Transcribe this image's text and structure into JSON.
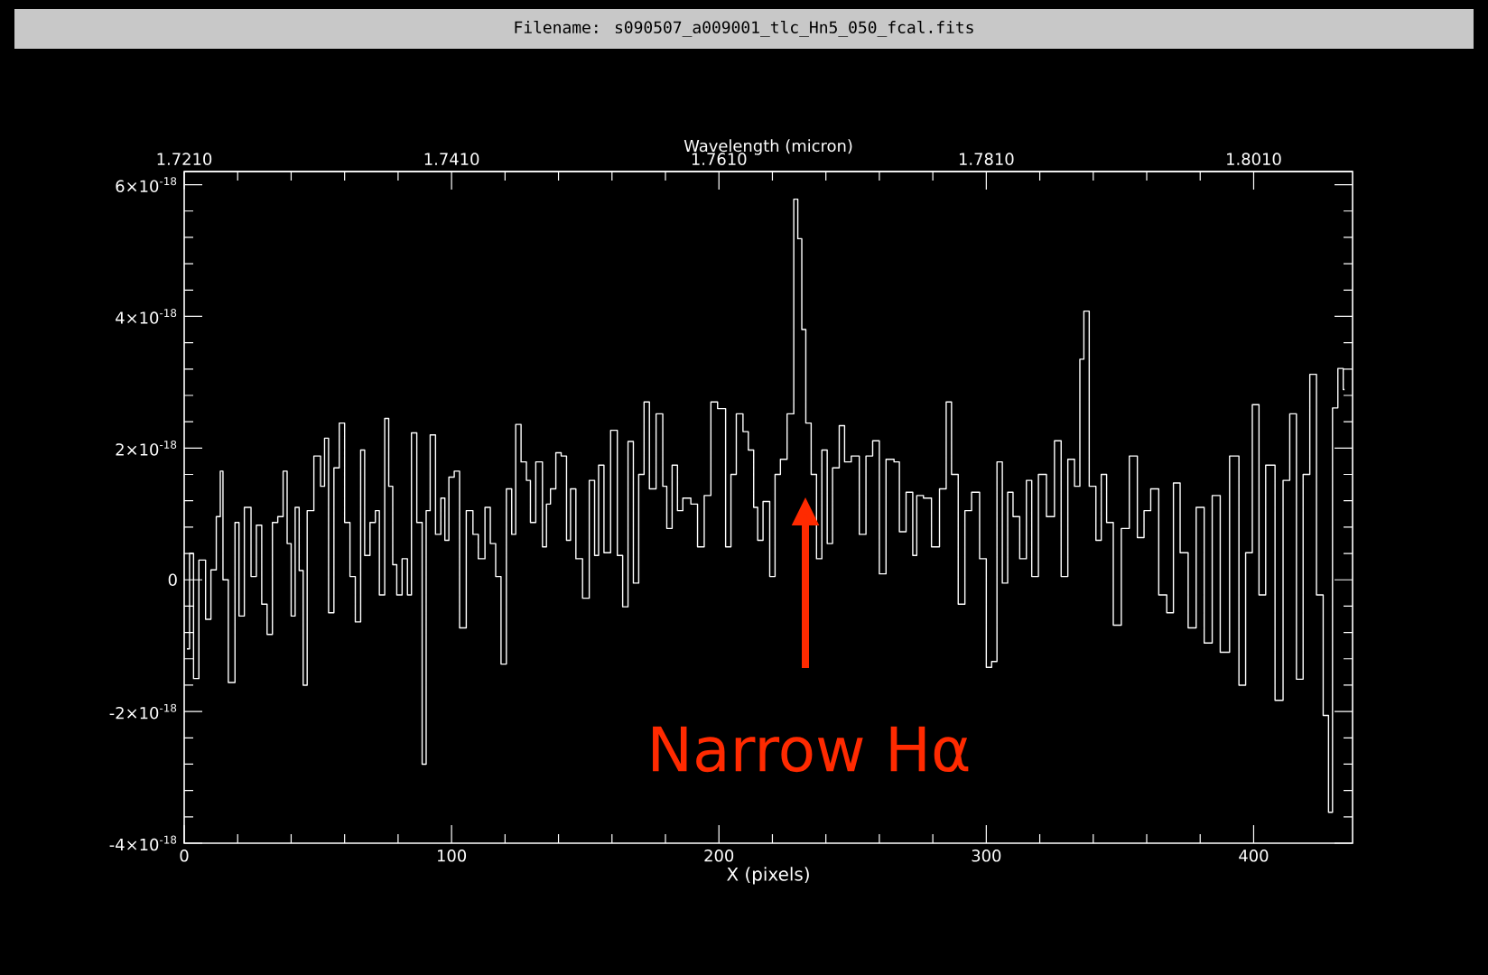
{
  "chart_data": {
    "type": "step",
    "title": "Filename: s090507_a009001_tlc_Hn5_050_fcal.fits",
    "xlabel": "X (pixels)",
    "x2label": "Wavelength (micron)",
    "xlim": [
      0,
      437
    ],
    "xticks": [
      0,
      100,
      200,
      300,
      400
    ],
    "x2lim": [
      1.721,
      1.8084
    ],
    "x2ticks": [
      {
        "value": 1.721,
        "label": "1.7210"
      },
      {
        "value": 1.741,
        "label": "1.7410"
      },
      {
        "value": 1.761,
        "label": "1.7610"
      },
      {
        "value": 1.781,
        "label": "1.7810"
      },
      {
        "value": 1.801,
        "label": "1.8010"
      }
    ],
    "ylim": [
      -4e-18,
      6.2e-18
    ],
    "yticks": [
      {
        "value": -4e-18,
        "label": "-4×10$^{-18}$"
      },
      {
        "value": -2e-18,
        "label": "-2×10$^{-18}$"
      },
      {
        "value": 0,
        "label": "0"
      },
      {
        "value": 2e-18,
        "label": "2×10$^{-18}$"
      },
      {
        "value": 4e-18,
        "label": "4×10$^{-18}$"
      },
      {
        "value": 6e-18,
        "label": "6×10$^{-18}$"
      }
    ],
    "annotations": [
      "Narrow Hα"
    ],
    "x": [
      1,
      3,
      4,
      7,
      9,
      11,
      13,
      14,
      15,
      18,
      20,
      21,
      24,
      26,
      28,
      30,
      32,
      34,
      36,
      38,
      39,
      41,
      42,
      44,
      45,
      47,
      50,
      52,
      53,
      55,
      57,
      59,
      61,
      63,
      65,
      67,
      68,
      71,
      72,
      74,
      76,
      77,
      79,
      80,
      83,
      84,
      86,
      88,
      90,
      91,
      93,
      95,
      97,
      98,
      100,
      102,
      104,
      107,
      109,
      111,
      114,
      115,
      118,
      119,
      122,
      123,
      125,
      127,
      129,
      130,
      133,
      135,
      136,
      138,
      140,
      142,
      144,
      145,
      148,
      150,
      153,
      154,
      156,
      158,
      161,
      163,
      165,
      167,
      169,
      171,
      173,
      175,
      178,
      180,
      181,
      184,
      185,
      188,
      191,
      193,
      196,
      198,
      201,
      204,
      205,
      208,
      210,
      212,
      214,
      215,
      218,
      220,
      222,
      224,
      227,
      229,
      230,
      232,
      233,
      236,
      237,
      240,
      241,
      244,
      246,
      248,
      251,
      254,
      256,
      259,
      261,
      264,
      267,
      268,
      272,
      273,
      275,
      278,
      281,
      284,
      286,
      288,
      291,
      293,
      296,
      299,
      301,
      303,
      305,
      307,
      309,
      311,
      314,
      316,
      318,
      321,
      324,
      327,
      329,
      332,
      334,
      336,
      337,
      340,
      342,
      344,
      346,
      349,
      352,
      355,
      358,
      360,
      363,
      366,
      369,
      371,
      374,
      377,
      380,
      383,
      386,
      389,
      393,
      396,
      398,
      401,
      403,
      406,
      410,
      412,
      415,
      417,
      420,
      422,
      425,
      427,
      429,
      430,
      433,
      434
    ],
    "series": [
      {
        "color": "#ffffff",
        "values": [
          -1.05e-18,
          4e-19,
          -1.5e-18,
          3e-19,
          -6e-19,
          1.5e-19,
          9.6e-19,
          1.65e-18,
          0,
          -1.56e-18,
          8.7e-19,
          -5.5e-19,
          1.1e-18,
          5e-20,
          8.3e-19,
          -3.7e-19,
          -8.3e-19,
          8.7e-19,
          9.6e-19,
          1.65e-18,
          5.5e-19,
          -5.5e-19,
          1.1e-18,
          1.4e-19,
          -1.6e-18,
          1.05e-18,
          1.88e-18,
          1.42e-18,
          2.15e-18,
          -5e-19,
          1.7e-18,
          2.38e-18,
          8.7e-19,
          5e-20,
          -6.4e-19,
          1.97e-18,
          3.7e-19,
          8.7e-19,
          1.05e-18,
          -2.3e-19,
          2.45e-18,
          1.42e-18,
          2.3e-19,
          -2.3e-19,
          3.2e-19,
          -2.3e-19,
          2.23e-18,
          8.7e-19,
          -2.8e-18,
          1.05e-18,
          2.2e-18,
          6.9e-19,
          1.24e-18,
          6e-19,
          1.56e-18,
          1.65e-18,
          -7.3e-19,
          1.05e-18,
          6.9e-19,
          3.2e-19,
          1.1e-18,
          5.5e-19,
          5e-20,
          -1.28e-18,
          1.38e-18,
          6.9e-19,
          2.36e-18,
          1.79e-18,
          1.51e-18,
          8.7e-19,
          1.79e-18,
          5e-19,
          1.15e-18,
          1.38e-18,
          1.93e-18,
          1.88e-18,
          6e-19,
          1.38e-18,
          3.2e-19,
          -2.8e-19,
          1.51e-18,
          3.7e-19,
          1.74e-18,
          4.1e-19,
          2.27e-18,
          3.7e-19,
          -4.1e-19,
          2.1e-18,
          -5e-20,
          1.6e-18,
          2.7e-18,
          1.38e-18,
          2.52e-18,
          1.42e-18,
          7.8e-19,
          1.74e-18,
          1.05e-18,
          1.24e-18,
          1.15e-18,
          5e-19,
          1.28e-18,
          2.7e-18,
          2.6e-18,
          5e-19,
          1.6e-18,
          2.52e-18,
          2.25e-18,
          1.97e-18,
          1.1e-18,
          6e-19,
          1.19e-18,
          5e-20,
          1.6e-18,
          1.83e-18,
          2.52e-18,
          5.78e-18,
          5.18e-18,
          3.8e-18,
          2.38e-18,
          1.6e-18,
          3.2e-19,
          1.97e-18,
          5.5e-19,
          1.7e-18,
          2.34e-18,
          1.79e-18,
          1.88e-18,
          6.9e-19,
          1.88e-18,
          2.11e-18,
          9e-20,
          1.83e-18,
          1.79e-18,
          7.3e-19,
          1.33e-18,
          3.7e-19,
          1.28e-18,
          1.24e-18,
          5e-19,
          1.38e-18,
          2.7e-18,
          1.6e-18,
          -3.7e-19,
          1.05e-18,
          1.33e-18,
          3.2e-19,
          -1.33e-18,
          -1.24e-18,
          1.79e-18,
          -5e-20,
          1.33e-18,
          9.6e-19,
          3.2e-19,
          1.51e-18,
          5e-20,
          1.6e-18,
          9.6e-19,
          2.11e-18,
          5e-20,
          1.83e-18,
          1.42e-18,
          3.35e-18,
          4.08e-18,
          1.42e-18,
          6e-19,
          1.6e-18,
          8.7e-19,
          -6.9e-19,
          7.8e-19,
          1.88e-18,
          6.4e-19,
          1.05e-18,
          1.38e-18,
          -2.3e-19,
          -5e-19,
          1.47e-18,
          4.1e-19,
          -7.3e-19,
          1.1e-18,
          -9.6e-19,
          1.28e-18,
          -1.1e-18,
          1.88e-18,
          -1.6e-18,
          4.1e-19,
          2.66e-18,
          -2.3e-19,
          1.74e-18,
          -1.83e-18,
          1.51e-18,
          2.52e-18,
          -1.51e-18,
          1.6e-18,
          3.12e-18,
          -2.3e-19,
          -2.06e-18,
          -3.53e-18,
          2.61e-18,
          3.21e-18,
          2.89e-18
        ]
      }
    ]
  }
}
